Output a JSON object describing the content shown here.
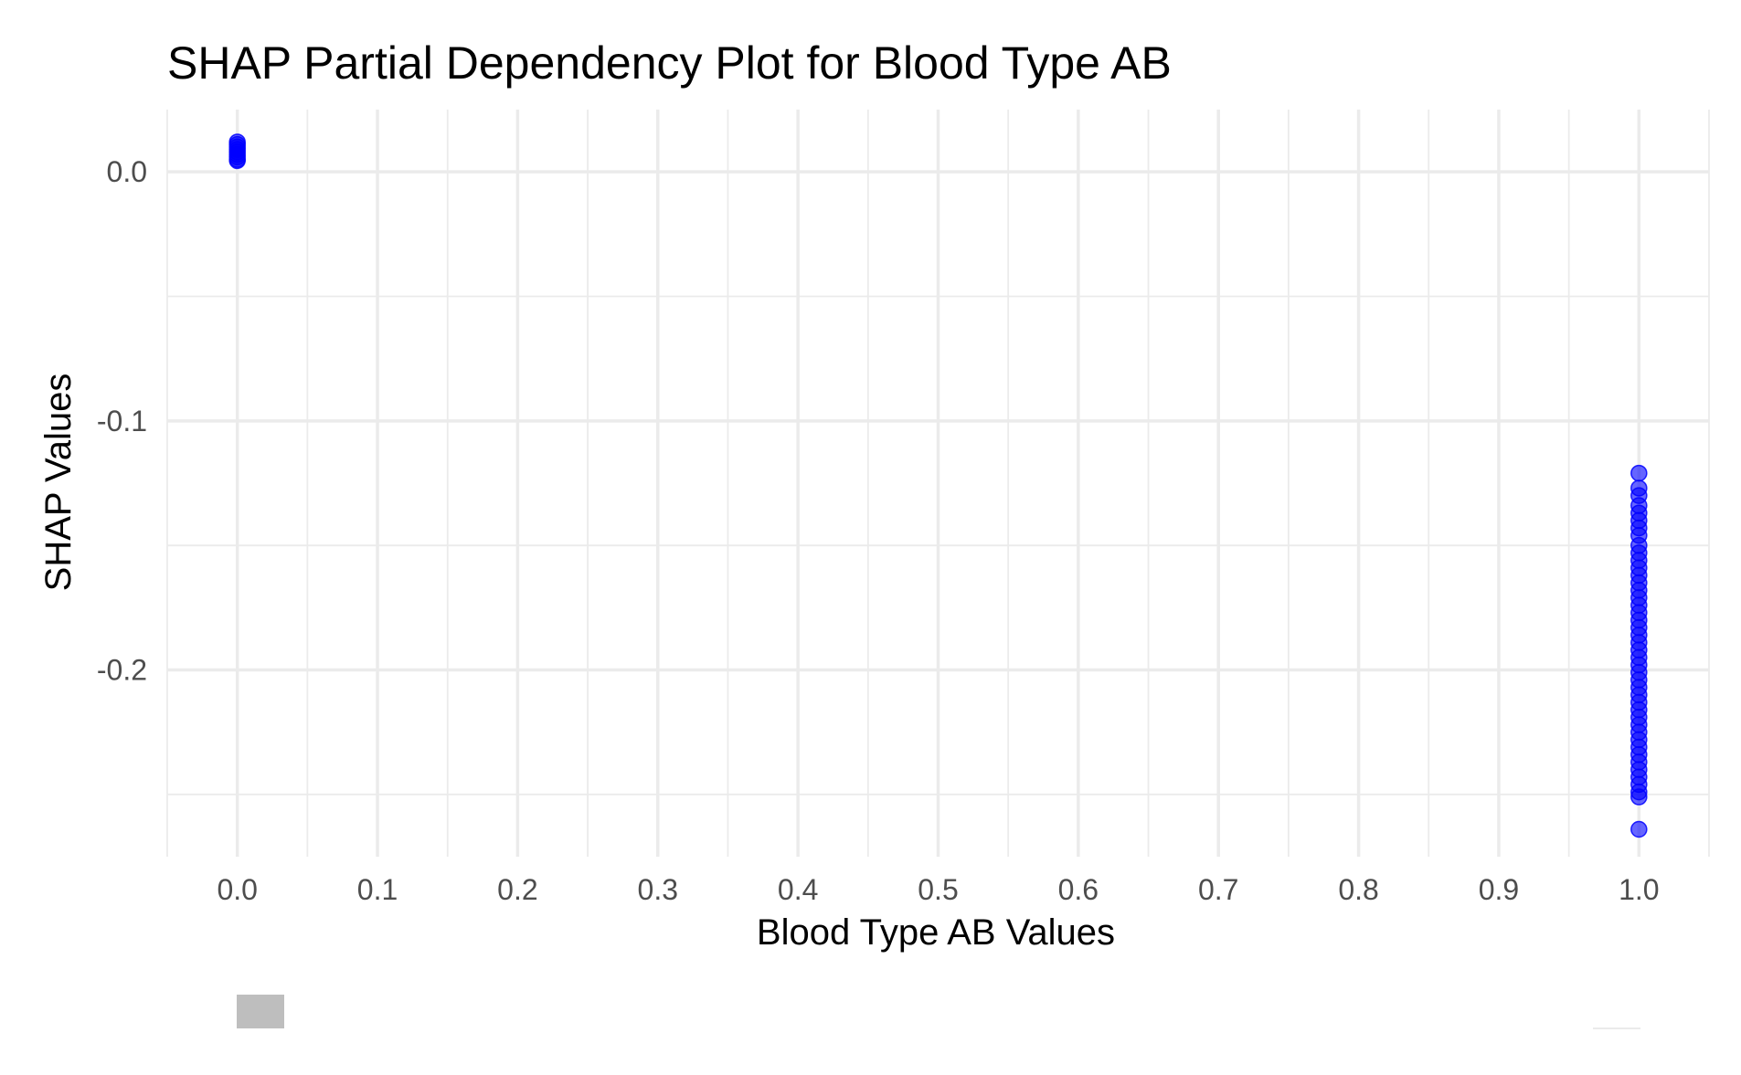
{
  "chart_data": {
    "type": "scatter",
    "title": "SHAP Partial Dependency Plot for Blood Type AB",
    "xlabel": "Blood Type AB Values",
    "ylabel": "SHAP Values",
    "xlim": [
      -0.05,
      1.05
    ],
    "ylim": [
      -0.275,
      0.025
    ],
    "x_ticks": [
      0.0,
      0.1,
      0.2,
      0.3,
      0.4,
      0.5,
      0.6,
      0.7,
      0.8,
      0.9,
      1.0
    ],
    "x_tick_labels": [
      "0.0",
      "0.1",
      "0.2",
      "0.3",
      "0.4",
      "0.5",
      "0.6",
      "0.7",
      "0.8",
      "0.9",
      "1.0"
    ],
    "y_ticks": [
      0.0,
      -0.1,
      -0.2
    ],
    "y_tick_labels": [
      "0.0",
      "-0.1",
      "-0.2"
    ],
    "grid": true,
    "point_color": "#0000ff",
    "point_opacity": 0.6,
    "series": [
      {
        "points": [
          {
            "x": 0,
            "y": 0.012
          },
          {
            "x": 0,
            "y": 0.011
          },
          {
            "x": 0,
            "y": 0.01
          },
          {
            "x": 0,
            "y": 0.009
          },
          {
            "x": 0,
            "y": 0.008
          },
          {
            "x": 0,
            "y": 0.007
          },
          {
            "x": 0,
            "y": 0.006
          },
          {
            "x": 0,
            "y": 0.005
          },
          {
            "x": 0,
            "y": 0.0045
          },
          {
            "x": 1,
            "y": -0.121
          },
          {
            "x": 1,
            "y": -0.127
          },
          {
            "x": 1,
            "y": -0.13
          },
          {
            "x": 1,
            "y": -0.134
          },
          {
            "x": 1,
            "y": -0.137
          },
          {
            "x": 1,
            "y": -0.14
          },
          {
            "x": 1,
            "y": -0.143
          },
          {
            "x": 1,
            "y": -0.146
          },
          {
            "x": 1,
            "y": -0.15
          },
          {
            "x": 1,
            "y": -0.153
          },
          {
            "x": 1,
            "y": -0.156
          },
          {
            "x": 1,
            "y": -0.159
          },
          {
            "x": 1,
            "y": -0.162
          },
          {
            "x": 1,
            "y": -0.165
          },
          {
            "x": 1,
            "y": -0.168
          },
          {
            "x": 1,
            "y": -0.171
          },
          {
            "x": 1,
            "y": -0.174
          },
          {
            "x": 1,
            "y": -0.177
          },
          {
            "x": 1,
            "y": -0.18
          },
          {
            "x": 1,
            "y": -0.183
          },
          {
            "x": 1,
            "y": -0.186
          },
          {
            "x": 1,
            "y": -0.189
          },
          {
            "x": 1,
            "y": -0.192
          },
          {
            "x": 1,
            "y": -0.195
          },
          {
            "x": 1,
            "y": -0.198
          },
          {
            "x": 1,
            "y": -0.201
          },
          {
            "x": 1,
            "y": -0.204
          },
          {
            "x": 1,
            "y": -0.207
          },
          {
            "x": 1,
            "y": -0.21
          },
          {
            "x": 1,
            "y": -0.213
          },
          {
            "x": 1,
            "y": -0.216
          },
          {
            "x": 1,
            "y": -0.219
          },
          {
            "x": 1,
            "y": -0.222
          },
          {
            "x": 1,
            "y": -0.225
          },
          {
            "x": 1,
            "y": -0.228
          },
          {
            "x": 1,
            "y": -0.231
          },
          {
            "x": 1,
            "y": -0.234
          },
          {
            "x": 1,
            "y": -0.237
          },
          {
            "x": 1,
            "y": -0.24
          },
          {
            "x": 1,
            "y": -0.243
          },
          {
            "x": 1,
            "y": -0.246
          },
          {
            "x": 1,
            "y": -0.249
          },
          {
            "x": 1,
            "y": -0.251
          },
          {
            "x": 1,
            "y": -0.264
          }
        ]
      }
    ]
  }
}
